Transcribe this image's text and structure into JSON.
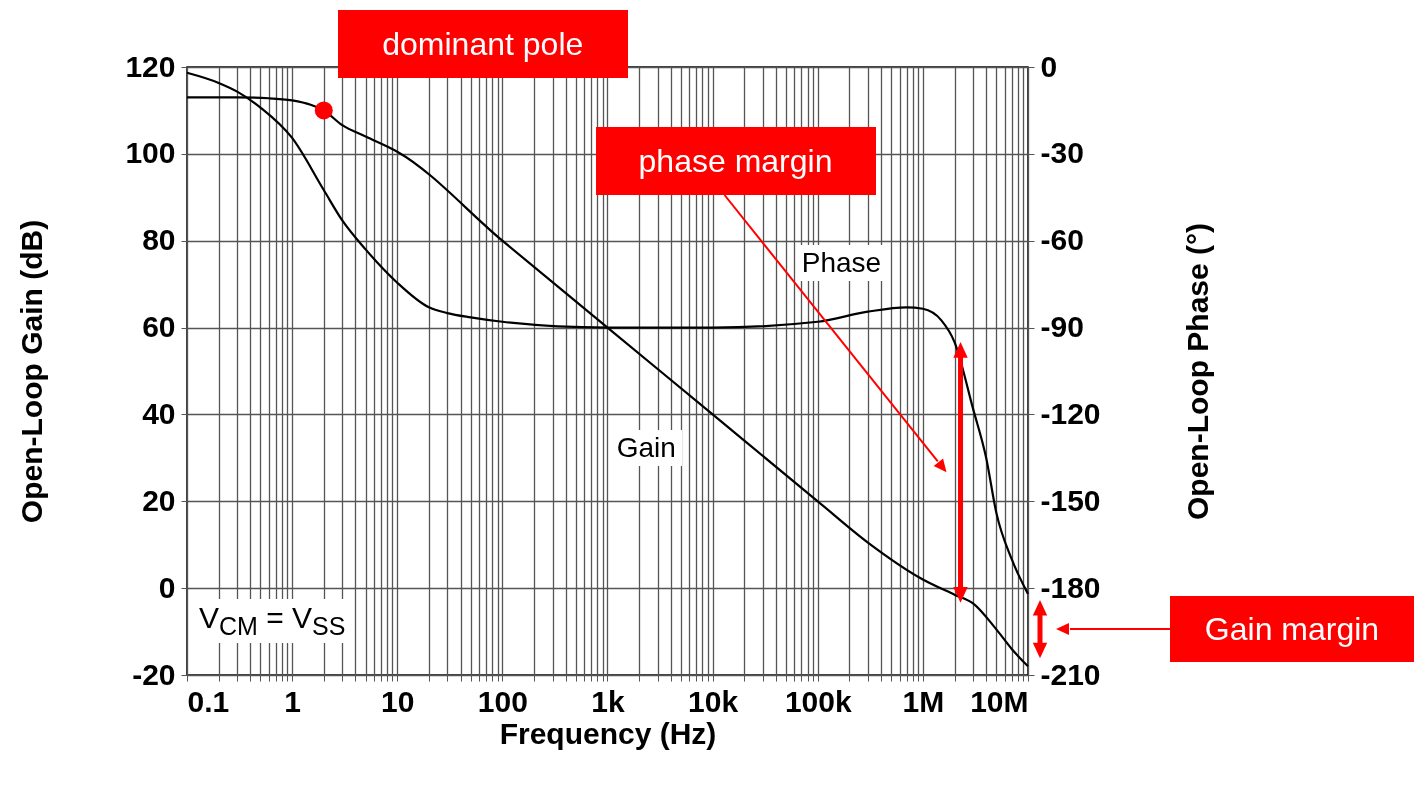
{
  "chart_data": {
    "type": "line",
    "xlabel": "Frequency (Hz)",
    "ylabel": "Open-Loop Gain (dB)",
    "y2label": "Open-Loop Phase (°)",
    "log": "x",
    "grid": true,
    "marker": "none",
    "line_style": "solid",
    "xlim": [
      0.1,
      10000000
    ],
    "ylim": [
      -20,
      120
    ],
    "y2lim": [
      -210,
      0
    ],
    "xticks": [
      {
        "value": 0.1,
        "label": "0.1"
      },
      {
        "value": 0.2,
        "label": null
      },
      {
        "value": 0.3,
        "label": null
      },
      {
        "value": 0.4,
        "label": null
      },
      {
        "value": 0.5,
        "label": null
      },
      {
        "value": 0.6,
        "label": null
      },
      {
        "value": 0.7,
        "label": null
      },
      {
        "value": 0.8,
        "label": null
      },
      {
        "value": 0.9,
        "label": null
      },
      {
        "value": 1,
        "label": "1"
      },
      {
        "value": 2,
        "label": null
      },
      {
        "value": 3,
        "label": null
      },
      {
        "value": 4,
        "label": null
      },
      {
        "value": 5,
        "label": null
      },
      {
        "value": 6,
        "label": null
      },
      {
        "value": 7,
        "label": null
      },
      {
        "value": 8,
        "label": null
      },
      {
        "value": 9,
        "label": null
      },
      {
        "value": 10,
        "label": "10"
      },
      {
        "value": 20,
        "label": null
      },
      {
        "value": 30,
        "label": null
      },
      {
        "value": 40,
        "label": null
      },
      {
        "value": 50,
        "label": null
      },
      {
        "value": 60,
        "label": null
      },
      {
        "value": 70,
        "label": null
      },
      {
        "value": 80,
        "label": null
      },
      {
        "value": 90,
        "label": null
      },
      {
        "value": 100,
        "label": "100"
      },
      {
        "value": 200,
        "label": null
      },
      {
        "value": 300,
        "label": null
      },
      {
        "value": 400,
        "label": null
      },
      {
        "value": 500,
        "label": null
      },
      {
        "value": 600,
        "label": null
      },
      {
        "value": 700,
        "label": null
      },
      {
        "value": 800,
        "label": null
      },
      {
        "value": 900,
        "label": null
      },
      {
        "value": 1000,
        "label": "1k"
      },
      {
        "value": 2000,
        "label": null
      },
      {
        "value": 3000,
        "label": null
      },
      {
        "value": 4000,
        "label": null
      },
      {
        "value": 5000,
        "label": null
      },
      {
        "value": 6000,
        "label": null
      },
      {
        "value": 7000,
        "label": null
      },
      {
        "value": 8000,
        "label": null
      },
      {
        "value": 9000,
        "label": null
      },
      {
        "value": 10000,
        "label": "10k"
      },
      {
        "value": 20000,
        "label": null
      },
      {
        "value": 30000,
        "label": null
      },
      {
        "value": 40000,
        "label": null
      },
      {
        "value": 50000,
        "label": null
      },
      {
        "value": 60000,
        "label": null
      },
      {
        "value": 70000,
        "label": null
      },
      {
        "value": 80000,
        "label": null
      },
      {
        "value": 90000,
        "label": null
      },
      {
        "value": 100000,
        "label": "100k"
      },
      {
        "value": 200000,
        "label": null
      },
      {
        "value": 300000,
        "label": null
      },
      {
        "value": 400000,
        "label": null
      },
      {
        "value": 500000,
        "label": null
      },
      {
        "value": 600000,
        "label": null
      },
      {
        "value": 700000,
        "label": null
      },
      {
        "value": 800000,
        "label": null
      },
      {
        "value": 900000,
        "label": null
      },
      {
        "value": 1000000,
        "label": "1M"
      },
      {
        "value": 2000000,
        "label": null
      },
      {
        "value": 3000000,
        "label": null
      },
      {
        "value": 4000000,
        "label": null
      },
      {
        "value": 5000000,
        "label": null
      },
      {
        "value": 6000000,
        "label": null
      },
      {
        "value": 7000000,
        "label": null
      },
      {
        "value": 8000000,
        "label": null
      },
      {
        "value": 9000000,
        "label": null
      },
      {
        "value": 10000000,
        "label": "10M"
      }
    ],
    "yticks": [
      -20,
      0,
      20,
      40,
      60,
      80,
      100,
      120
    ],
    "y2ticks": [
      -210,
      -180,
      -150,
      -120,
      -90,
      -60,
      -30,
      0
    ],
    "series": [
      {
        "name": "Gain",
        "color": "#000000",
        "x": [
          0.1,
          0.3,
          0.6,
          1,
          1.5,
          2,
          3,
          5,
          10,
          100,
          1000,
          10000,
          100000,
          300000,
          1000000,
          2000000,
          3000000,
          5000000,
          7000000,
          10000000
        ],
        "values": [
          113,
          113,
          112.8,
          112.3,
          111.3,
          110,
          106.6,
          104,
          100.5,
          80,
          60,
          40,
          20,
          10.5,
          2,
          -1.5,
          -3.5,
          -9.5,
          -14,
          -18
        ]
      },
      {
        "name": "Phase",
        "color": "#000000",
        "axis": "y2",
        "x": [
          0.1,
          0.2,
          0.3,
          0.5,
          1,
          2,
          3,
          5,
          10,
          20,
          30,
          50,
          100,
          1000,
          10000,
          100000,
          300000,
          700000,
          1000000,
          1500000,
          2000000,
          3000000,
          4000000,
          5000000,
          7000000,
          10000000
        ],
        "values": [
          -2,
          -5.5,
          -8.5,
          -14,
          -24.5,
          -42.5,
          -53,
          -63,
          -74.5,
          -83,
          -85,
          -86.5,
          -88,
          -90,
          -90,
          -88,
          -84.5,
          -83,
          -83.5,
          -87.5,
          -95,
          -118,
          -135,
          -154,
          -170,
          -182
        ]
      }
    ],
    "annotations": [
      {
        "text": "dominant pole",
        "x": 2,
        "y": 110
      },
      "phase margin",
      "Gain margin",
      "V$_{CM}$ = V$_{SS}$"
    ]
  }
}
